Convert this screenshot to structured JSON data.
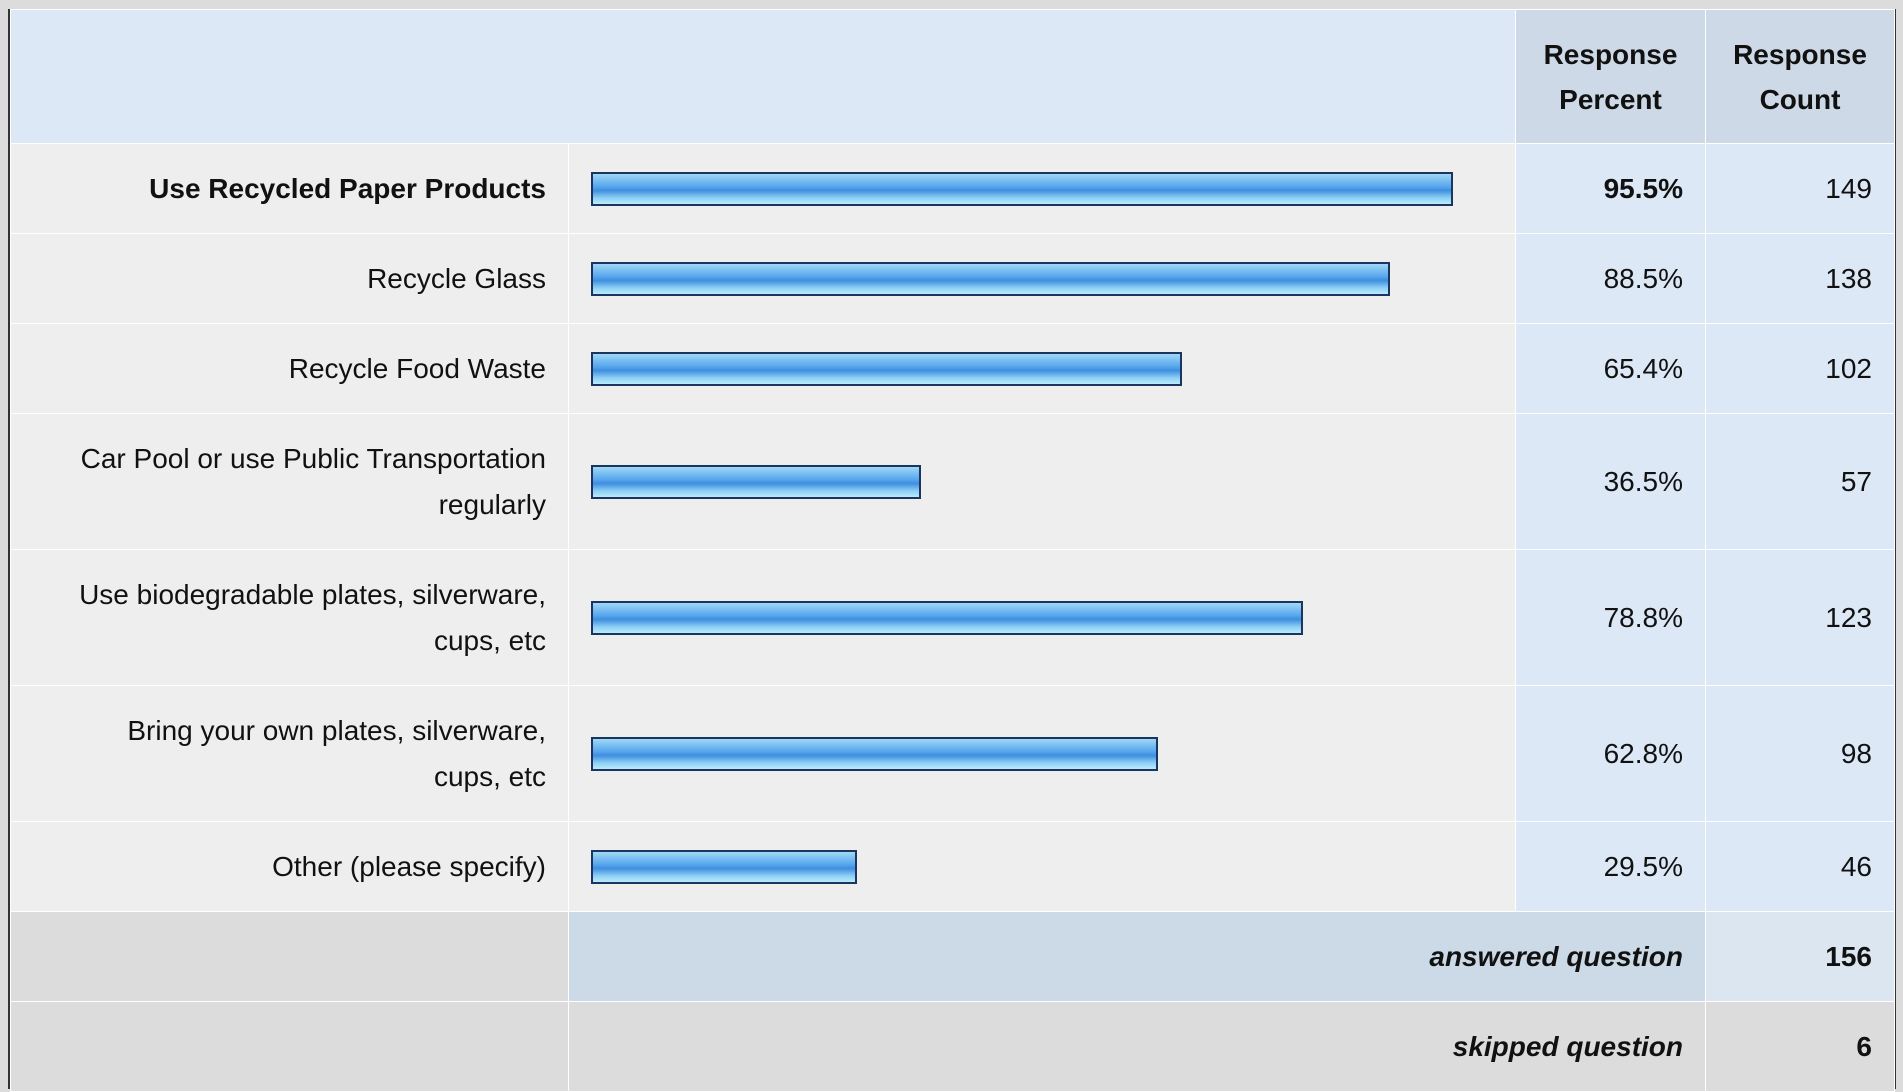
{
  "header": {
    "columns": [
      "Response Percent",
      "Response Count"
    ]
  },
  "xlim": [
    0,
    100
  ],
  "rows": [
    {
      "label": "Use Recycled Paper Products",
      "percent": 95.5,
      "percent_label": "95.5%",
      "count": 149
    },
    {
      "label": "Recycle Glass",
      "percent": 88.5,
      "percent_label": "88.5%",
      "count": 138
    },
    {
      "label": "Recycle Food Waste",
      "percent": 65.4,
      "percent_label": "65.4%",
      "count": 102
    },
    {
      "label": "Car Pool or use Public Transportation regularly",
      "percent": 36.5,
      "percent_label": "36.5%",
      "count": 57
    },
    {
      "label": "Use biodegradable plates, silverware, cups, etc",
      "percent": 78.8,
      "percent_label": "78.8%",
      "count": 123
    },
    {
      "label": "Bring your own plates, silverware, cups, etc",
      "percent": 62.8,
      "percent_label": "62.8%",
      "count": 98
    },
    {
      "label": "Other (please specify)",
      "percent": 29.5,
      "percent_label": "29.5%",
      "count": 46
    }
  ],
  "footer": [
    {
      "label": "answered question",
      "count": 156
    },
    {
      "label": "skipped question",
      "count": 6
    }
  ]
}
